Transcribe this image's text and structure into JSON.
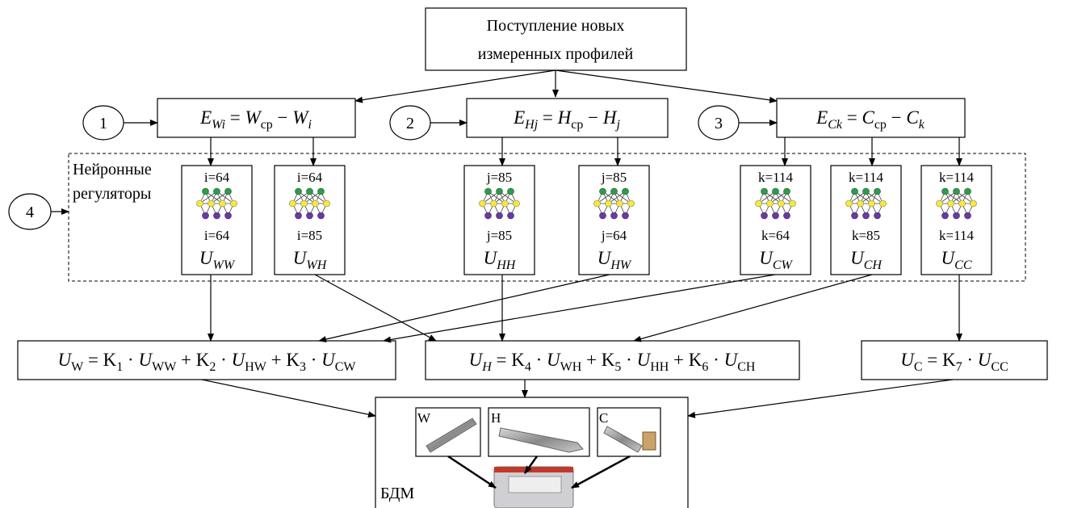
{
  "header": {
    "lines": [
      "Поступление новых",
      "измеренных профилей"
    ]
  },
  "steps": [
    "1",
    "2",
    "3",
    "4"
  ],
  "errors": [
    [
      {
        "text": "E",
        "sub": "Wi",
        "italic": true,
        "sub_italic": true
      },
      {
        "text": " = "
      },
      {
        "text": "W",
        "sub": "ср",
        "italic": true
      },
      {
        "text": " − "
      },
      {
        "text": "W",
        "sub": "i",
        "italic": true,
        "sub_italic": true
      }
    ],
    [
      {
        "text": "E",
        "sub": "Hj",
        "italic": true,
        "sub_italic": true
      },
      {
        "text": " = "
      },
      {
        "text": "H",
        "sub": "ср",
        "italic": true
      },
      {
        "text": " − "
      },
      {
        "text": "H",
        "sub": "j",
        "italic": true,
        "sub_italic": true
      }
    ],
    [
      {
        "text": "E",
        "sub": "Ck",
        "italic": true,
        "sub_italic": true
      },
      {
        "text": " = "
      },
      {
        "text": "C",
        "sub": "ср",
        "italic": true
      },
      {
        "text": " − "
      },
      {
        "text": "C",
        "sub": "k",
        "italic": true,
        "sub_italic": true
      }
    ]
  ],
  "regulators_label": [
    "Нейронные",
    "регуляторы"
  ],
  "regulators": [
    {
      "top": "i=64",
      "bottom": "i=64",
      "output": [
        {
          "text": "U",
          "sub": "WW",
          "italic": true,
          "sub_italic": true
        }
      ]
    },
    {
      "top": "i=64",
      "bottom": "i=85",
      "output": [
        {
          "text": "U",
          "sub": "WH",
          "italic": true,
          "sub_italic": true
        }
      ]
    },
    {
      "top": "j=85",
      "bottom": "j=85",
      "output": [
        {
          "text": "U",
          "sub": "HH",
          "italic": true,
          "sub_italic": true
        }
      ]
    },
    {
      "top": "j=85",
      "bottom": "j=64",
      "output": [
        {
          "text": "U",
          "sub": "HW",
          "italic": true,
          "sub_italic": true
        }
      ]
    },
    {
      "top": "k=114",
      "bottom": "k=64",
      "output": [
        {
          "text": "U",
          "sub": "CW",
          "italic": true,
          "sub_italic": true
        }
      ]
    },
    {
      "top": "k=114",
      "bottom": "k=85",
      "output": [
        {
          "text": "U",
          "sub": "CH",
          "italic": true,
          "sub_italic": true
        }
      ]
    },
    {
      "top": "k=114",
      "bottom": "k=114",
      "output": [
        {
          "text": "U",
          "sub": "CC",
          "italic": true,
          "sub_italic": true
        }
      ]
    }
  ],
  "controls": [
    [
      {
        "text": "U",
        "sub": "W",
        "italic": true
      },
      {
        "text": " = K",
        "sub": "1"
      },
      {
        "text": " · "
      },
      {
        "text": "U",
        "sub": "WW",
        "italic": true
      },
      {
        "text": " + K",
        "sub": "2"
      },
      {
        "text": " · "
      },
      {
        "text": "U",
        "sub": "HW",
        "italic": true
      },
      {
        "text": " + K",
        "sub": "3"
      },
      {
        "text": " · "
      },
      {
        "text": "U",
        "sub": "CW",
        "italic": true
      }
    ],
    [
      {
        "text": "U",
        "sub": "H",
        "italic": true,
        "sub_italic": true
      },
      {
        "text": " = K",
        "sub": "4"
      },
      {
        "text": " · "
      },
      {
        "text": "U",
        "sub": "WH",
        "italic": true
      },
      {
        "text": " + K",
        "sub": "5"
      },
      {
        "text": " · "
      },
      {
        "text": "U",
        "sub": "HH",
        "italic": true
      },
      {
        "text": " + K",
        "sub": "6"
      },
      {
        "text": " · "
      },
      {
        "text": "U",
        "sub": "CH",
        "italic": true
      }
    ],
    [
      {
        "text": "U",
        "sub": "C",
        "italic": true
      },
      {
        "text": " = K",
        "sub": "7"
      },
      {
        "text": " · "
      },
      {
        "text": "U",
        "sub": "CC",
        "italic": true
      }
    ]
  ],
  "machine": {
    "label": "БДМ",
    "parts": [
      "W",
      "H",
      "C"
    ]
  }
}
